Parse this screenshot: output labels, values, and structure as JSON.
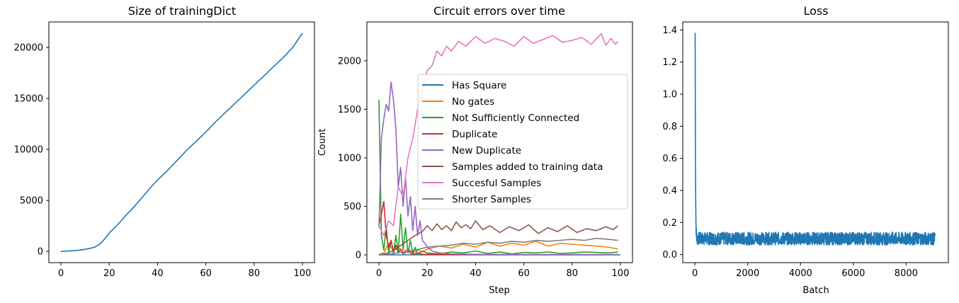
{
  "chart_data": [
    {
      "type": "line",
      "title": "Size of trainingDict",
      "xlabel": "",
      "ylabel": "",
      "xlim": [
        -5,
        105
      ],
      "ylim": [
        -1100,
        22500
      ],
      "xticks": [
        0,
        20,
        40,
        60,
        80,
        100
      ],
      "yticks": [
        0,
        5000,
        10000,
        15000,
        20000
      ],
      "series": [
        {
          "color": "#1f77b4",
          "x": [
            0,
            3,
            6,
            9,
            12,
            14,
            16,
            18,
            20,
            23,
            26,
            30,
            34,
            38,
            40,
            44,
            48,
            52,
            56,
            60,
            64,
            68,
            72,
            76,
            80,
            84,
            88,
            92,
            96,
            100
          ],
          "y": [
            0,
            40,
            90,
            160,
            300,
            420,
            700,
            1200,
            1800,
            2500,
            3300,
            4300,
            5400,
            6500,
            7000,
            7900,
            8900,
            9900,
            10800,
            11700,
            12700,
            13600,
            14500,
            15400,
            16300,
            17200,
            18100,
            19000,
            20000,
            21400
          ]
        }
      ]
    },
    {
      "type": "line",
      "title": "Circuit errors over time",
      "xlabel": "Step",
      "ylabel": "Count",
      "xlim": [
        -5,
        105
      ],
      "ylim": [
        -80,
        2400
      ],
      "xticks": [
        0,
        20,
        40,
        60,
        80,
        100
      ],
      "yticks": [
        0,
        500,
        1000,
        1500,
        2000
      ],
      "legend_position": "center-right",
      "series": [
        {
          "name": "Has Square",
          "color": "#1f77b4",
          "x": [
            0,
            20,
            40,
            60,
            80,
            100
          ],
          "y": [
            0,
            0,
            0,
            0,
            0,
            0
          ]
        },
        {
          "name": "No gates",
          "color": "#ff7f0e",
          "x": [
            0,
            2,
            4,
            6,
            8,
            10,
            12,
            14,
            16,
            18,
            20,
            25,
            30,
            35,
            40,
            45,
            50,
            55,
            60,
            65,
            70,
            75,
            80,
            85,
            90,
            95,
            99
          ],
          "y": [
            5,
            20,
            120,
            40,
            80,
            30,
            60,
            20,
            50,
            30,
            60,
            90,
            70,
            110,
            80,
            130,
            90,
            120,
            100,
            140,
            90,
            120,
            110,
            100,
            90,
            80,
            60
          ]
        },
        {
          "name": "Not Sufficiently Connected",
          "color": "#2ca02c",
          "x": [
            0,
            1,
            2,
            3,
            4,
            5,
            6,
            7,
            8,
            9,
            10,
            11,
            12,
            13,
            14,
            15,
            16,
            18,
            20,
            25,
            30,
            35,
            40,
            45,
            50,
            55,
            60,
            65,
            70,
            75,
            80,
            85,
            90,
            95,
            99
          ],
          "y": [
            1600,
            200,
            50,
            300,
            20,
            150,
            10,
            200,
            30,
            420,
            50,
            280,
            20,
            150,
            10,
            80,
            5,
            40,
            20,
            10,
            30,
            20,
            40,
            15,
            30,
            10,
            25,
            20,
            30,
            15,
            20,
            30,
            25,
            20,
            30
          ]
        },
        {
          "name": "Duplicate",
          "color": "#d62728",
          "x": [
            0,
            1,
            2,
            3,
            4,
            5,
            6,
            7,
            8,
            9,
            10,
            12,
            14,
            16,
            18,
            20,
            30,
            40,
            60,
            80,
            99
          ],
          "y": [
            300,
            420,
            550,
            200,
            80,
            150,
            30,
            100,
            20,
            60,
            10,
            40,
            5,
            20,
            5,
            5,
            3,
            3,
            2,
            2,
            2
          ]
        },
        {
          "name": "New Duplicate",
          "color": "#9467bd",
          "x": [
            0,
            1,
            2,
            3,
            4,
            5,
            6,
            7,
            8,
            9,
            10,
            11,
            12,
            13,
            14,
            15,
            16,
            17,
            18,
            19,
            20,
            22,
            25,
            30,
            40,
            60,
            80,
            99
          ],
          "y": [
            280,
            1200,
            1400,
            1550,
            1480,
            1780,
            1600,
            1300,
            700,
            900,
            500,
            800,
            400,
            600,
            250,
            500,
            200,
            350,
            150,
            120,
            80,
            40,
            20,
            10,
            5,
            3,
            3,
            3
          ]
        },
        {
          "name": "Samples added to training data",
          "color": "#8c564b",
          "x": [
            0,
            4,
            8,
            12,
            15,
            18,
            20,
            22,
            24,
            26,
            28,
            30,
            32,
            34,
            36,
            38,
            40,
            43,
            46,
            50,
            54,
            58,
            62,
            66,
            70,
            74,
            78,
            82,
            86,
            90,
            94,
            97,
            99
          ],
          "y": [
            0,
            20,
            80,
            150,
            200,
            240,
            300,
            250,
            320,
            260,
            300,
            250,
            340,
            280,
            310,
            270,
            350,
            260,
            300,
            230,
            290,
            250,
            310,
            220,
            280,
            240,
            300,
            230,
            270,
            250,
            290,
            260,
            300
          ]
        },
        {
          "name": "Succesful Samples",
          "color": "#e377c2",
          "x": [
            0,
            2,
            4,
            6,
            8,
            10,
            12,
            14,
            16,
            18,
            20,
            22,
            24,
            26,
            28,
            30,
            33,
            36,
            40,
            44,
            48,
            52,
            56,
            60,
            64,
            68,
            72,
            76,
            80,
            84,
            88,
            92,
            94,
            96,
            98,
            99
          ],
          "y": [
            300,
            200,
            350,
            300,
            700,
            600,
            1000,
            1200,
            1500,
            1700,
            1900,
            1950,
            2100,
            2050,
            2150,
            2100,
            2200,
            2150,
            2250,
            2180,
            2230,
            2200,
            2150,
            2250,
            2180,
            2220,
            2260,
            2190,
            2210,
            2240,
            2170,
            2280,
            2160,
            2230,
            2170,
            2200
          ]
        },
        {
          "name": "Shorter Samples",
          "color": "#7f7f7f",
          "x": [
            0,
            5,
            10,
            15,
            20,
            25,
            30,
            35,
            40,
            45,
            50,
            55,
            60,
            65,
            70,
            75,
            80,
            85,
            90,
            95,
            99
          ],
          "y": [
            0,
            10,
            30,
            50,
            80,
            90,
            100,
            120,
            110,
            130,
            120,
            140,
            130,
            150,
            140,
            150,
            160,
            150,
            170,
            160,
            150
          ]
        }
      ]
    },
    {
      "type": "line",
      "title": "Loss",
      "xlabel": "Batch",
      "ylabel": "",
      "xlim": [
        -460,
        9600
      ],
      "ylim": [
        -0.05,
        1.45
      ],
      "xticks": [
        0,
        2000,
        4000,
        6000,
        8000
      ],
      "yticks": [
        0.0,
        0.2,
        0.4,
        0.6,
        0.8,
        1.0,
        1.2,
        1.4
      ],
      "series": [
        {
          "color": "#1f77b4",
          "x_max": 9100,
          "peak": 1.38,
          "baseline": 0.1,
          "noise": 0.025
        }
      ]
    }
  ]
}
